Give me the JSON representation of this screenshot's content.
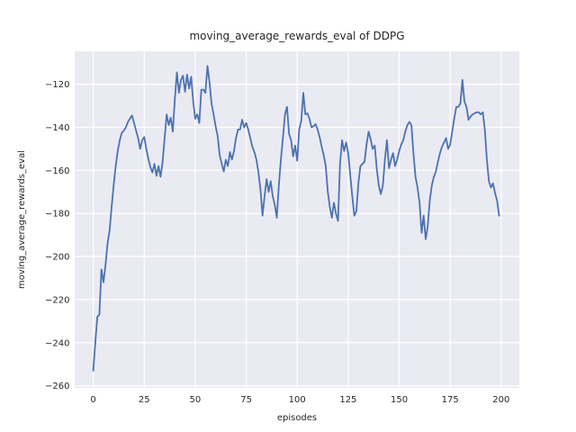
{
  "figure": {
    "title": "moving_average_rewards_eval of DDPG",
    "xlabel": "episodes",
    "ylabel": "moving_average_rewards_eval"
  },
  "chart_data": {
    "type": "line",
    "title": "moving_average_rewards_eval of DDPG",
    "xlabel": "episodes",
    "ylabel": "moving_average_rewards_eval",
    "series": [
      {
        "name": "moving_average_rewards_eval",
        "x_start": 0,
        "x_step": 1,
        "values": [
          -253,
          -240,
          -228,
          -227,
          -206,
          -212,
          -204,
          -194,
          -188,
          -177,
          -167,
          -158,
          -151,
          -146,
          -142.5,
          -141.5,
          -140,
          -137.5,
          -136,
          -134.5,
          -138,
          -141.5,
          -145,
          -150,
          -146,
          -144.5,
          -150,
          -154.5,
          -158.5,
          -161,
          -157,
          -162.5,
          -158,
          -163,
          -156,
          -145,
          -134,
          -139,
          -135.5,
          -142,
          -127,
          -114.5,
          -124,
          -118,
          -116,
          -123.5,
          -115.5,
          -122,
          -116.5,
          -128,
          -136,
          -134,
          -138,
          -122.5,
          -122.5,
          -124,
          -111.5,
          -119,
          -129,
          -134,
          -139.5,
          -144,
          -153,
          -157,
          -160.5,
          -155,
          -158,
          -151.5,
          -155,
          -151,
          -145,
          -141,
          -141,
          -136.5,
          -140,
          -138,
          -141,
          -145,
          -149,
          -151.5,
          -155,
          -161,
          -169,
          -181,
          -172,
          -164,
          -170,
          -165,
          -172,
          -176,
          -182,
          -167,
          -155,
          -145,
          -134,
          -130.5,
          -143,
          -146,
          -153.5,
          -148.5,
          -155.5,
          -141,
          -137,
          -124,
          -134,
          -133.5,
          -136,
          -140,
          -139.5,
          -138.5,
          -141,
          -144.5,
          -149,
          -153,
          -158,
          -170,
          -177,
          -182,
          -175,
          -180,
          -183.5,
          -157,
          -146,
          -151,
          -147,
          -152,
          -162,
          -172,
          -181,
          -179,
          -166,
          -158,
          -157,
          -156,
          -148,
          -142,
          -145.5,
          -150,
          -148.5,
          -159,
          -167,
          -171,
          -167,
          -155,
          -146,
          -159,
          -155,
          -152,
          -158,
          -155,
          -151,
          -148,
          -146,
          -142,
          -139,
          -137.5,
          -139,
          -152,
          -163,
          -168,
          -175,
          -189,
          -181,
          -192,
          -186,
          -174,
          -167,
          -163,
          -160.5,
          -156,
          -152,
          -149,
          -147,
          -145,
          -150,
          -148,
          -142,
          -136,
          -130.5,
          -130.5,
          -129,
          -118,
          -128,
          -130.5,
          -136.5,
          -135,
          -134,
          -133.5,
          -133,
          -133,
          -134,
          -133,
          -141,
          -155,
          -165,
          -168,
          -166,
          -170.5,
          -174,
          -181
        ]
      }
    ],
    "xlim": [
      -9.1,
      208.9
    ],
    "ylim": [
      -261,
      -104.7
    ],
    "xticks": [
      0,
      25,
      50,
      75,
      100,
      125,
      150,
      175,
      200
    ],
    "yticks": [
      -120,
      -140,
      -160,
      -180,
      -200,
      -220,
      -240,
      -260
    ],
    "xtick_labels": [
      "0",
      "25",
      "50",
      "75",
      "100",
      "125",
      "150",
      "175",
      "200"
    ],
    "ytick_labels": [
      "−120",
      "−140",
      "−160",
      "−180",
      "−200",
      "−220",
      "−240",
      "−260"
    ],
    "grid": true,
    "legend": null,
    "colors": {
      "line": "#4c72b0",
      "axes_background": "#eaeaf2",
      "gridline": "#ffffff",
      "text": "#262626",
      "figure_background": "#ffffff"
    }
  }
}
